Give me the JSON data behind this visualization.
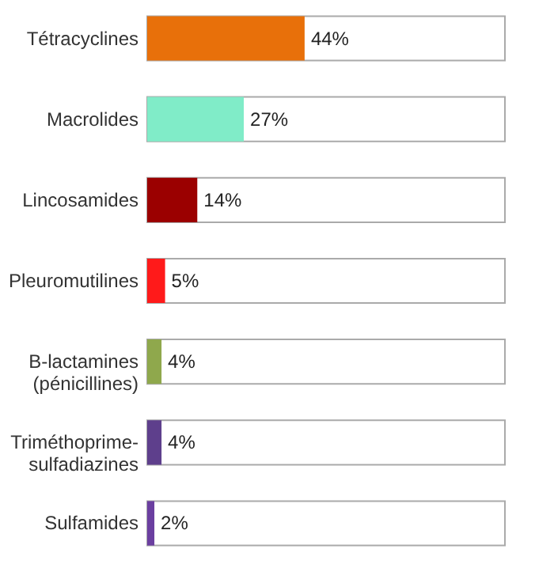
{
  "chart_data": {
    "type": "bar",
    "orientation": "horizontal",
    "categories": [
      "Tétracyclines",
      "Macrolides",
      "Lincosamides",
      "Pleuromutilines",
      "B-lactamines\n(pénicillines)",
      "Triméthoprime-\nsulfadiazines",
      "Sulfamides"
    ],
    "values": [
      44,
      27,
      14,
      5,
      4,
      4,
      2
    ],
    "colors": [
      "#e8700a",
      "#80ecc8",
      "#9b0000",
      "#ff1a1a",
      "#8fa84c",
      "#5e3f8c",
      "#6b3fa0"
    ],
    "value_labels": [
      "44%",
      "27%",
      "14%",
      "5%",
      "4%",
      "4%",
      "2%"
    ],
    "xlim": [
      0,
      100
    ],
    "tick_labels": "y",
    "grid": false
  }
}
